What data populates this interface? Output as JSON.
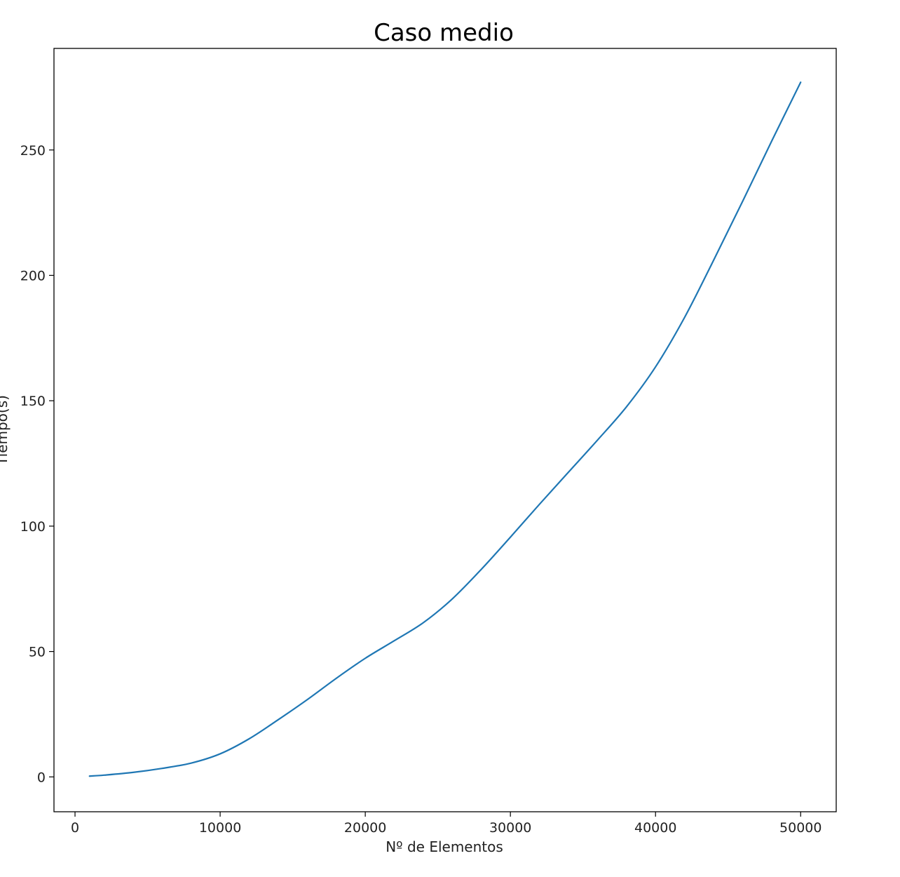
{
  "chart_data": {
    "type": "line",
    "title": "Caso medio",
    "xlabel": "Nº de Elementos",
    "ylabel": "Tiempo(s)",
    "xlim": [
      -1450,
      52450
    ],
    "ylim": [
      -13.9,
      290.5
    ],
    "xticks": [
      0,
      10000,
      20000,
      30000,
      40000,
      50000
    ],
    "yticks": [
      0,
      50,
      100,
      150,
      200,
      250
    ],
    "grid": false,
    "line_color": "#1f77b4",
    "series": [
      {
        "x": [
          1000,
          2000,
          4000,
          6000,
          8000,
          10000,
          12000,
          14000,
          16000,
          18000,
          20000,
          22000,
          24000,
          26000,
          28000,
          30000,
          32000,
          34000,
          36000,
          38000,
          40000,
          42000,
          44000,
          46000,
          48000,
          50000
        ],
        "values": [
          0.3,
          0.7,
          1.8,
          3.4,
          5.5,
          9.2,
          15.2,
          22.8,
          30.8,
          39.3,
          47.3,
          54.3,
          61.5,
          71.0,
          82.8,
          95.6,
          108.7,
          121.5,
          134.3,
          147.6,
          163.5,
          183.2,
          206.0,
          229.5,
          253.5,
          277.0
        ]
      }
    ]
  }
}
